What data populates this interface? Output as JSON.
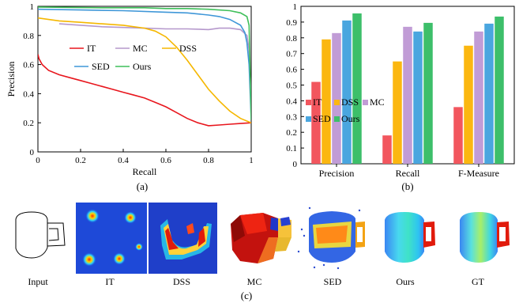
{
  "chart_data": [
    {
      "type": "line",
      "panel_label": "(a)",
      "xlabel": "Recall",
      "ylabel": "Precision",
      "xlim": [
        0,
        1
      ],
      "ylim": [
        0,
        1
      ],
      "xticks": [
        "0",
        "0.2",
        "0.4",
        "0.6",
        "0.8",
        "1"
      ],
      "yticks": [
        "0",
        "0.2",
        "0.4",
        "0.6",
        "0.8",
        "1"
      ],
      "grid": false,
      "legend": "center, inside plot",
      "series": [
        {
          "name": "IT",
          "color": "#e8161d",
          "points": [
            [
              0,
              0.67
            ],
            [
              0.005,
              0.64
            ],
            [
              0.02,
              0.6
            ],
            [
              0.05,
              0.56
            ],
            [
              0.1,
              0.53
            ],
            [
              0.15,
              0.51
            ],
            [
              0.2,
              0.49
            ],
            [
              0.25,
              0.47
            ],
            [
              0.3,
              0.45
            ],
            [
              0.35,
              0.43
            ],
            [
              0.4,
              0.41
            ],
            [
              0.45,
              0.39
            ],
            [
              0.5,
              0.37
            ],
            [
              0.55,
              0.34
            ],
            [
              0.6,
              0.31
            ],
            [
              0.65,
              0.27
            ],
            [
              0.7,
              0.23
            ],
            [
              0.75,
              0.2
            ],
            [
              0.8,
              0.18
            ],
            [
              0.85,
              0.185
            ],
            [
              0.9,
              0.19
            ],
            [
              0.95,
              0.195
            ],
            [
              1,
              0.2
            ]
          ]
        },
        {
          "name": "MC",
          "color": "#b598cc",
          "points": [
            [
              0.1,
              0.88
            ],
            [
              0.2,
              0.87
            ],
            [
              0.3,
              0.86
            ],
            [
              0.4,
              0.855
            ],
            [
              0.5,
              0.85
            ],
            [
              0.6,
              0.845
            ],
            [
              0.7,
              0.845
            ],
            [
              0.8,
              0.84
            ],
            [
              0.85,
              0.85
            ],
            [
              0.9,
              0.85
            ],
            [
              0.95,
              0.84
            ],
            [
              0.98,
              0.8
            ],
            [
              0.99,
              0.7
            ],
            [
              1,
              0.35
            ]
          ]
        },
        {
          "name": "DSS",
          "color": "#f5b700",
          "points": [
            [
              0,
              0.92
            ],
            [
              0.05,
              0.91
            ],
            [
              0.1,
              0.9
            ],
            [
              0.2,
              0.89
            ],
            [
              0.3,
              0.88
            ],
            [
              0.4,
              0.87
            ],
            [
              0.5,
              0.85
            ],
            [
              0.55,
              0.83
            ],
            [
              0.6,
              0.79
            ],
            [
              0.65,
              0.72
            ],
            [
              0.7,
              0.63
            ],
            [
              0.75,
              0.53
            ],
            [
              0.8,
              0.43
            ],
            [
              0.85,
              0.35
            ],
            [
              0.9,
              0.28
            ],
            [
              0.95,
              0.23
            ],
            [
              1,
              0.2
            ]
          ]
        },
        {
          "name": "SED",
          "color": "#3f97d8",
          "points": [
            [
              0,
              0.98
            ],
            [
              0.2,
              0.975
            ],
            [
              0.4,
              0.97
            ],
            [
              0.6,
              0.96
            ],
            [
              0.7,
              0.955
            ],
            [
              0.8,
              0.94
            ],
            [
              0.85,
              0.93
            ],
            [
              0.9,
              0.91
            ],
            [
              0.95,
              0.87
            ],
            [
              0.97,
              0.82
            ],
            [
              0.98,
              0.75
            ],
            [
              0.99,
              0.6
            ],
            [
              1,
              0.22
            ]
          ]
        },
        {
          "name": "Ours",
          "color": "#3fbf5a",
          "points": [
            [
              0,
              0.995
            ],
            [
              0.3,
              0.99
            ],
            [
              0.5,
              0.99
            ],
            [
              0.6,
              0.985
            ],
            [
              0.7,
              0.985
            ],
            [
              0.8,
              0.98
            ],
            [
              0.9,
              0.97
            ],
            [
              0.95,
              0.955
            ],
            [
              0.98,
              0.93
            ],
            [
              0.99,
              0.87
            ],
            [
              1,
              0.22
            ]
          ]
        }
      ]
    },
    {
      "type": "bar",
      "panel_label": "(b)",
      "ylim": [
        0,
        1
      ],
      "yticks": [
        "0",
        "0.1",
        "0.2",
        "0.3",
        "0.4",
        "0.5",
        "0.6",
        "0.7",
        "0.8",
        "0.9",
        "1"
      ],
      "grid": false,
      "legend": "center-left, inside plot",
      "categories": [
        "Precision",
        "Recall",
        "F-Measure"
      ],
      "series": [
        {
          "name": "IT",
          "color": "#f2565e",
          "values": [
            0.52,
            0.18,
            0.36
          ]
        },
        {
          "name": "DSS",
          "color": "#fbb710",
          "values": [
            0.79,
            0.65,
            0.75
          ]
        },
        {
          "name": "MC",
          "color": "#c19cd6",
          "values": [
            0.83,
            0.87,
            0.84
          ]
        },
        {
          "name": "SED",
          "color": "#4aa6df",
          "values": [
            0.91,
            0.84,
            0.89
          ]
        },
        {
          "name": "Ours",
          "color": "#3dbf6a",
          "values": [
            0.955,
            0.895,
            0.935
          ]
        }
      ]
    }
  ],
  "figure_c": {
    "panel_label": "(c)",
    "captions": [
      "Input",
      "IT",
      "DSS",
      "MC",
      "SED",
      "Ours",
      "GT"
    ]
  }
}
